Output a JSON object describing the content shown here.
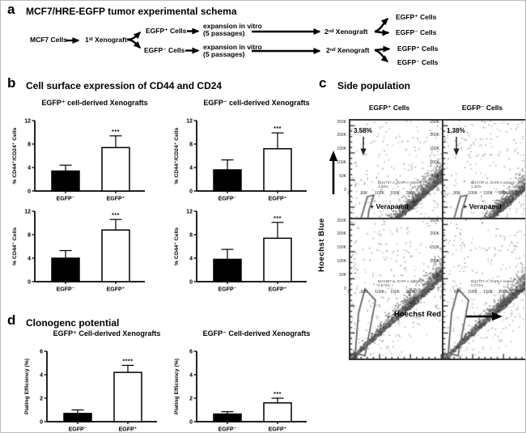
{
  "panel_a": {
    "label": "a",
    "title": "MCF7/HRE-EGFP tumor experimental schema",
    "nodes": {
      "mcf7": "MCF7 Cells",
      "xeno1": "1ˢᵗ Xenograft",
      "egfp_pos": "EGFP⁺ Cells",
      "egfp_neg": "EGFP⁻ Cells",
      "expansion_line1": "expansion in vitro",
      "expansion_line2": "(5 passages)",
      "xeno2": "2ⁿᵈ Xenograft"
    }
  },
  "panel_b": {
    "label": "b",
    "title": "Cell surface expression of CD44 and CD24"
  },
  "panel_c": {
    "label": "c",
    "title": "Side population",
    "xlabel": "Hoechst Red",
    "ylabel": "Hoechst Blue",
    "axis_ticks": [
      "0",
      "50K",
      "100K",
      "150K",
      "200K",
      "250K"
    ],
    "plots": [
      {
        "title": "EGFP⁺ Cells",
        "gate_pct": "3.58%",
        "subset_line1": "BUV737-A, DAPI-A subset",
        "subset_line2": "3.58%",
        "has_arrow": true,
        "seed": 7
      },
      {
        "title": "EGFP⁻ Cells",
        "gate_pct": "1.38%",
        "subset_line1": "BUV737-A, DAPI-A subset",
        "subset_line2": "1.38%",
        "has_arrow": true,
        "seed": 13
      },
      {
        "title": "+ Verapamil",
        "gate_pct": "",
        "subset_line1": "BUV737-A, DAPI-A subset",
        "subset_line2": "0.672%",
        "has_arrow": false,
        "seed": 21
      },
      {
        "title": "+ Verapamil",
        "gate_pct": "",
        "subset_line1": "BUV737-A, DAPI-A subset",
        "subset_line2": "0.274%",
        "has_arrow": false,
        "seed": 29
      }
    ]
  },
  "panel_d": {
    "label": "d",
    "title": "Clonogenc potential"
  },
  "chart_data": [
    {
      "id": "b1",
      "type": "bar",
      "title": "EGFP⁺ cell-derived Xenografts",
      "ylabel": "% CD44⁺/CD24⁺ Cells",
      "ylim": [
        0,
        12
      ],
      "yticks": [
        0,
        4,
        8,
        12
      ],
      "categories": [
        "EGFP⁻",
        "EGFP⁺"
      ],
      "values": [
        3.4,
        7.4
      ],
      "errors": [
        1.0,
        2.0
      ],
      "significance": [
        "",
        "***"
      ],
      "bar_fills": [
        "#000000",
        "#ffffff"
      ]
    },
    {
      "id": "b2",
      "type": "bar",
      "title": "EGFP⁻ cell-derived Xenografts",
      "ylabel": "% CD44⁺/CD24⁺ Cells",
      "ylim": [
        0,
        12
      ],
      "yticks": [
        0,
        4,
        8,
        12
      ],
      "categories": [
        "EGFP⁻",
        "EGFP⁺"
      ],
      "values": [
        3.6,
        7.2
      ],
      "errors": [
        1.7,
        2.7
      ],
      "significance": [
        "",
        "***"
      ],
      "bar_fills": [
        "#000000",
        "#ffffff"
      ]
    },
    {
      "id": "b3",
      "type": "bar",
      "title": "",
      "ylabel": "% CD44⁺ Cells",
      "ylim": [
        0,
        12
      ],
      "yticks": [
        0,
        4,
        8,
        12
      ],
      "categories": [
        "EGFP⁻",
        "EGFP⁺"
      ],
      "values": [
        4.0,
        8.8
      ],
      "errors": [
        1.3,
        1.8
      ],
      "significance": [
        "",
        "***"
      ],
      "bar_fills": [
        "#000000",
        "#ffffff"
      ]
    },
    {
      "id": "b4",
      "type": "bar",
      "title": "",
      "ylabel": "% CD44⁺ Cells",
      "ylim": [
        0,
        12
      ],
      "yticks": [
        0,
        4,
        8,
        12
      ],
      "categories": [
        "EGFP⁻",
        "EGFP⁺"
      ],
      "values": [
        3.8,
        7.4
      ],
      "errors": [
        1.7,
        2.7
      ],
      "significance": [
        "",
        "***"
      ],
      "bar_fills": [
        "#000000",
        "#ffffff"
      ]
    },
    {
      "id": "d1",
      "type": "bar",
      "title": "EGFP⁺ Cell-derived Xenografts",
      "ylabel": "Plating Efficiency (%)",
      "ylim": [
        0,
        6
      ],
      "yticks": [
        0,
        2,
        4,
        6
      ],
      "categories": [
        "EGFP⁻",
        "EGFP⁺"
      ],
      "values": [
        0.7,
        4.2
      ],
      "errors": [
        0.3,
        0.6
      ],
      "significance": [
        "",
        "****"
      ],
      "bar_fills": [
        "#000000",
        "#ffffff"
      ]
    },
    {
      "id": "d2",
      "type": "bar",
      "title": "EGFP⁻ Cell-derived Xenografts",
      "ylabel": "Plating Efficiency (%)",
      "ylim": [
        0,
        6
      ],
      "yticks": [
        0,
        2,
        4,
        6
      ],
      "categories": [
        "EGFP⁻",
        "EGFP⁺"
      ],
      "values": [
        0.65,
        1.6
      ],
      "errors": [
        0.2,
        0.4
      ],
      "significance": [
        "",
        "***"
      ],
      "bar_fills": [
        "#000000",
        "#ffffff"
      ]
    }
  ],
  "colors": {
    "bar_negative": "#000000",
    "bar_positive": "#ffffff",
    "axis": "#000000",
    "background": "#ffffff"
  }
}
